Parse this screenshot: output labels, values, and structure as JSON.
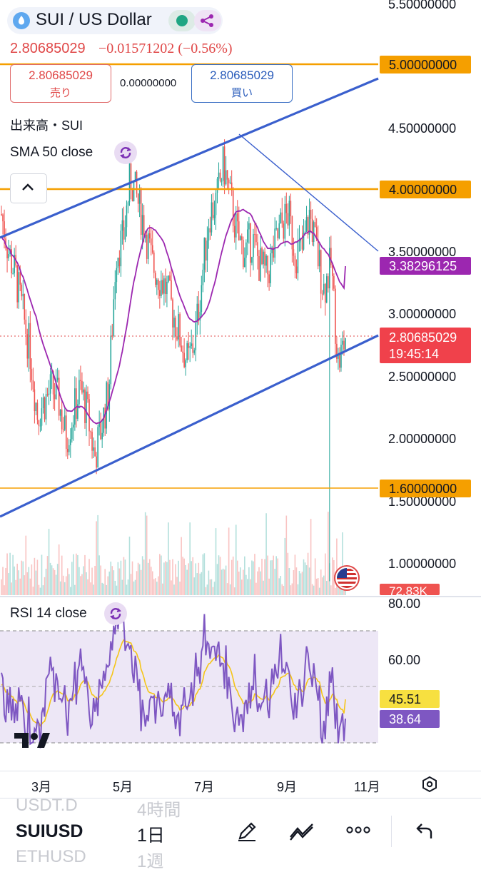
{
  "header": {
    "pair_title": "SUI / US Dollar",
    "price": "2.80685029",
    "change": "−0.01571202 (−0.56%)",
    "sell_price": "2.80685029",
    "sell_label": "売り",
    "spread": "0.00000000",
    "buy_price": "2.80685029",
    "buy_label": "買い",
    "volume_label": "出来高・SUI",
    "sma_label": "SMA 50 close"
  },
  "price_axis": {
    "ticks": [
      "5.50000000",
      "4.50000000",
      "3.50000000",
      "3.00000000",
      "2.50000000",
      "2.00000000",
      "1.50000000",
      "1.00000000"
    ],
    "tick_values": [
      5.5,
      4.5,
      3.5,
      3.0,
      2.5,
      2.0,
      1.5,
      1.0
    ],
    "badge_5": "5.00000000",
    "badge_4": "4.00000000",
    "badge_sma": "3.38296125",
    "badge_price": "2.80685029",
    "badge_countdown": "19:45:14",
    "badge_16": "1.60000000",
    "badge_volume": "72.83K"
  },
  "rsi": {
    "label": "RSI 14 close",
    "ticks": [
      "80.00",
      "60.00"
    ],
    "badge_ma": "45.51",
    "badge_rsi": "38.64"
  },
  "time_axis": [
    "3月",
    "5月",
    "7月",
    "9月",
    "11月"
  ],
  "bottom_bar": {
    "ghost_top_left": "USDT.D",
    "ghost_top_right": "4時間",
    "symbol": "SUIUSD",
    "interval": "1日",
    "ghost_bottom_left": "ETHUSD",
    "ghost_bottom_right": "1週"
  },
  "colors": {
    "up": "#26a69a",
    "down": "#ef5350",
    "trendline": "#3a5fcd",
    "horizontal": "#f59f00",
    "sma": "#9c27b0",
    "rsi": "#7e57c2",
    "rsi_ma": "#f5c518"
  },
  "chart_data": [
    {
      "type": "candlestick",
      "symbol": "SUI / US Dollar",
      "y_axis": {
        "min": 0.85,
        "max": 5.55,
        "ticks": [
          5.5,
          4.5,
          3.5,
          3.0,
          2.5,
          2.0,
          1.5,
          1.0
        ]
      },
      "x_ticks": [
        "3月",
        "5月",
        "7月",
        "9月",
        "11月"
      ],
      "close_path_approx": [
        3.8,
        3.5,
        3.3,
        3.0,
        2.7,
        2.2,
        2.3,
        2.4,
        2.3,
        2.0,
        2.2,
        2.4,
        2.2,
        1.85,
        2.1,
        2.4,
        3.5,
        3.6,
        4.1,
        3.9,
        3.7,
        3.4,
        3.3,
        3.2,
        3.0,
        2.8,
        2.6,
        2.8,
        3.3,
        3.8,
        3.9,
        4.2,
        3.9,
        3.6,
        3.5,
        3.6,
        3.4,
        3.3,
        3.5,
        3.7,
        3.8,
        3.5,
        3.5,
        3.8,
        3.5,
        3.2,
        3.4,
        2.6,
        2.8
      ],
      "horizontal_levels": [
        5.0,
        4.0,
        1.6
      ],
      "last_price": 2.80685029,
      "sma50_last": 3.38296125,
      "volume_last": "72.83K"
    },
    {
      "type": "line",
      "name": "RSI 14 close",
      "y_axis": {
        "ticks": [
          80,
          60
        ]
      },
      "bands": [
        70,
        30
      ],
      "rsi_last": 38.64,
      "rsi_ma_last": 45.51
    }
  ]
}
